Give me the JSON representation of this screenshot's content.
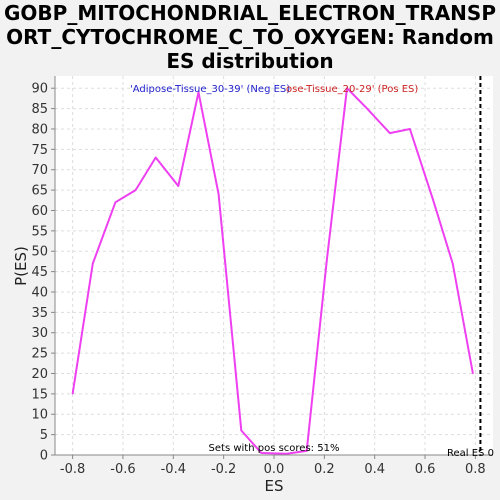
{
  "title_lines": [
    "GOBP_MITOCHONDRIAL_ELECTRON_TRANSP",
    "ORT_CYTOCHROME_C_TO_OXYGEN: Random",
    "ES distribution"
  ],
  "chart_data": {
    "type": "line",
    "xlabel": "ES",
    "ylabel": "P(ES)",
    "xlim": [
      -0.87,
      0.87
    ],
    "ylim": [
      0,
      93
    ],
    "x_ticks": [
      -0.8,
      -0.6,
      -0.4,
      -0.2,
      0.0,
      0.2,
      0.4,
      0.6,
      0.8
    ],
    "x_tick_labels": [
      "-0.8",
      "-0.6",
      "-0.4",
      "-0.2",
      "0.0",
      "0.2",
      "0.4",
      "0.6",
      "0.8"
    ],
    "y_ticks": [
      0,
      5,
      10,
      15,
      20,
      25,
      30,
      35,
      40,
      45,
      50,
      55,
      60,
      65,
      70,
      75,
      80,
      85,
      90
    ],
    "grid": true,
    "series": [
      {
        "color": "#ee3ff0",
        "x": [
          -0.8,
          -0.72,
          -0.63,
          -0.55,
          -0.47,
          -0.38,
          -0.3,
          -0.22,
          -0.13,
          -0.05,
          0.05,
          0.13,
          0.21,
          0.29,
          0.37,
          0.46,
          0.54,
          0.63,
          0.71,
          0.79
        ],
        "y": [
          15,
          47,
          62,
          65,
          73,
          66,
          89,
          64,
          6,
          0.5,
          0.3,
          1,
          48,
          90,
          85,
          79,
          80,
          63,
          47,
          20
        ]
      }
    ],
    "real_es": 0.82,
    "annotations": {
      "neg_label": "'Adipose-Tissue_30-39' (Neg ES)",
      "pos_label": "ose-Tissue_20-29' (Pos ES)",
      "pos_scores": "Sets with pos scores: 51%",
      "real_es_label": "Real ES 0"
    }
  },
  "colors": {
    "neg_label": "#2222cc",
    "pos_label": "#cc2222",
    "grid": "#dddddd"
  }
}
